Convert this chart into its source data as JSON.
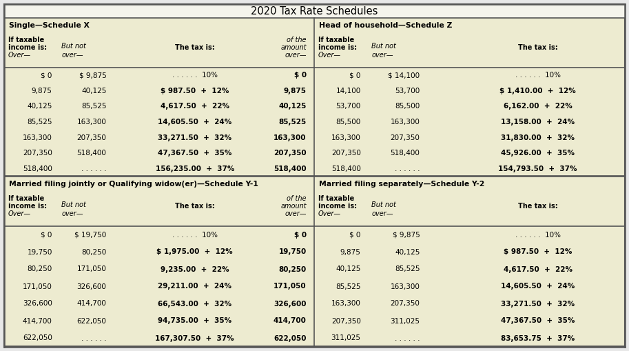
{
  "title": "2020 Tax Rate Schedules",
  "bg_color": "#edebd0",
  "white_bg": "#f5f4ec",
  "title_bg": "#ffffff",
  "border_color": "#555555",
  "schedules": [
    {
      "title": "Single—Schedule X",
      "has_of_col": true,
      "rows": [
        [
          "$ 0",
          "$ 9,875",
          ". . . . . .  10%",
          "$ 0",
          false
        ],
        [
          "9,875",
          "40,125",
          "$ 987.50  +  12%",
          "9,875",
          true
        ],
        [
          "40,125",
          "85,525",
          "4,617.50  +  22%",
          "40,125",
          true
        ],
        [
          "85,525",
          "163,300",
          "14,605.50  +  24%",
          "85,525",
          true
        ],
        [
          "163,300",
          "207,350",
          "33,271.50  +  32%",
          "163,300",
          true
        ],
        [
          "207,350",
          "518,400",
          "47,367.50  +  35%",
          "207,350",
          true
        ],
        [
          "518,400",
          ". . . . . .",
          "156,235.00  +  37%",
          "518,400",
          true
        ]
      ]
    },
    {
      "title": "Head of household—Schedule Z",
      "has_of_col": false,
      "rows": [
        [
          "$ 0",
          "$ 14,100",
          ". . . . . .  10%",
          "",
          false
        ],
        [
          "14,100",
          "53,700",
          "$ 1,410.00  +  12%",
          "",
          true
        ],
        [
          "53,700",
          "85,500",
          "6,162.00  +  22%",
          "",
          true
        ],
        [
          "85,500",
          "163,300",
          "13,158.00  +  24%",
          "",
          true
        ],
        [
          "163,300",
          "207,350",
          "31,830.00  +  32%",
          "",
          true
        ],
        [
          "207,350",
          "518,400",
          "45,926.00  +  35%",
          "",
          true
        ],
        [
          "518,400",
          ". . . . . .",
          "154,793.50  +  37%",
          "",
          true
        ]
      ]
    },
    {
      "title": "Married filing jointly or Qualifying widow(er)—Schedule Y-1",
      "has_of_col": true,
      "rows": [
        [
          "$ 0",
          "$ 19,750",
          ". . . . . .  10%",
          "$ 0",
          false
        ],
        [
          "19,750",
          "80,250",
          "$ 1,975.00  +  12%",
          "19,750",
          true
        ],
        [
          "80,250",
          "171,050",
          "9,235.00  +  22%",
          "80,250",
          true
        ],
        [
          "171,050",
          "326,600",
          "29,211.00  +  24%",
          "171,050",
          true
        ],
        [
          "326,600",
          "414,700",
          "66,543.00  +  32%",
          "326,600",
          true
        ],
        [
          "414,700",
          "622,050",
          "94,735.00  +  35%",
          "414,700",
          true
        ],
        [
          "622,050",
          ". . . . . .",
          "167,307.50  +  37%",
          "622,050",
          true
        ]
      ]
    },
    {
      "title": "Married filing separately—Schedule Y-2",
      "has_of_col": false,
      "rows": [
        [
          "$ 0",
          "$ 9,875",
          ". . . . . .  10%",
          "",
          false
        ],
        [
          "9,875",
          "40,125",
          "$ 987.50  +  12%",
          "",
          true
        ],
        [
          "40,125",
          "85,525",
          "4,617.50  +  22%",
          "",
          true
        ],
        [
          "85,525",
          "163,300",
          "14,605.50  +  24%",
          "",
          true
        ],
        [
          "163,300",
          "207,350",
          "33,271.50  +  32%",
          "",
          true
        ],
        [
          "207,350",
          "311,025",
          "47,367.50  +  35%",
          "",
          true
        ],
        [
          "311,025",
          ". . . . . .",
          "83,653.75  +  37%",
          "",
          true
        ]
      ]
    }
  ]
}
